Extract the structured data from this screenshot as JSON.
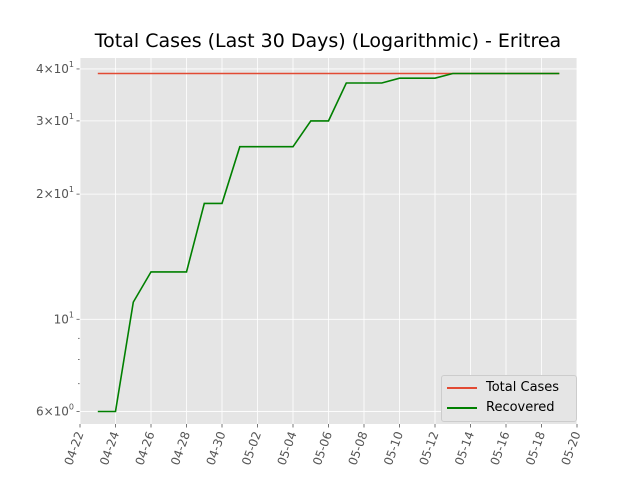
{
  "chart_data": {
    "type": "line",
    "title": "Total Cases (Last 30 Days) (Logarithmic) - Eritrea",
    "xlabel": "",
    "ylabel": "",
    "y_scale": "log",
    "ylim": [
      5.6,
      42.5
    ],
    "xlim": [
      "2020-04-22",
      "2020-05-20"
    ],
    "x_tick_labels": [
      "04-22",
      "04-24",
      "04-26",
      "04-28",
      "04-30",
      "05-02",
      "05-04",
      "05-06",
      "05-08",
      "05-10",
      "05-12",
      "05-14",
      "05-16",
      "05-18",
      "05-20"
    ],
    "y_ticks": [
      {
        "value": 6,
        "base": "6",
        "exponent": "0",
        "times": "×"
      },
      {
        "value": 10,
        "base": "10",
        "exponent": "1",
        "times": ""
      },
      {
        "value": 20,
        "base": "2",
        "exponent": "1",
        "times": "×",
        "ten": "10"
      },
      {
        "value": 30,
        "base": "3",
        "exponent": "1",
        "times": "×",
        "ten": "10"
      },
      {
        "value": 40,
        "base": "4",
        "exponent": "1",
        "times": "×",
        "ten": "10"
      }
    ],
    "grid": true,
    "legend_position": "lower-right",
    "x": [
      "2020-04-23",
      "2020-04-24",
      "2020-04-25",
      "2020-04-26",
      "2020-04-27",
      "2020-04-28",
      "2020-04-29",
      "2020-04-30",
      "2020-05-01",
      "2020-05-02",
      "2020-05-03",
      "2020-05-04",
      "2020-05-05",
      "2020-05-06",
      "2020-05-07",
      "2020-05-08",
      "2020-05-09",
      "2020-05-10",
      "2020-05-11",
      "2020-05-12",
      "2020-05-13",
      "2020-05-14",
      "2020-05-15",
      "2020-05-16",
      "2020-05-17",
      "2020-05-18",
      "2020-05-19"
    ],
    "series": [
      {
        "name": "Total Cases",
        "color": "#e24a33",
        "values": [
          39,
          39,
          39,
          39,
          39,
          39,
          39,
          39,
          39,
          39,
          39,
          39,
          39,
          39,
          39,
          39,
          39,
          39,
          39,
          39,
          39,
          39,
          39,
          39,
          39,
          39,
          39
        ]
      },
      {
        "name": "Recovered",
        "color": "#008000",
        "values": [
          6,
          6,
          11,
          13,
          13,
          13,
          19,
          19,
          26,
          26,
          26,
          26,
          30,
          30,
          37,
          37,
          37,
          38,
          38,
          38,
          39,
          39,
          39,
          39,
          39,
          39,
          39
        ]
      }
    ]
  },
  "style": {
    "plot_bg": "#e5e5e5",
    "grid_color": "#ffffff",
    "tick_color": "#555555"
  }
}
